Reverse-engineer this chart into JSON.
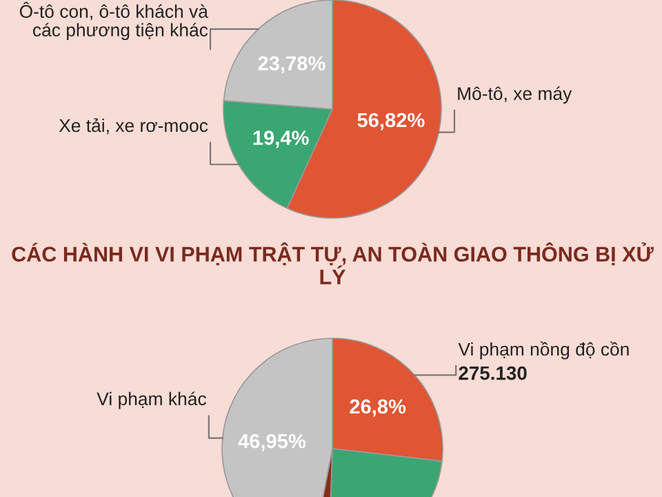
{
  "chart_data": [
    {
      "type": "pie",
      "categories": [
        "Mô-tô, xe máy",
        "Xe tải, xe rơ-mooc",
        "Ô-tô con, ô-tô khách và các phương tiện khác"
      ],
      "values": [
        56.82,
        19.4,
        23.78
      ],
      "colors": [
        "#e05533",
        "#3aa672",
        "#c4c4c4"
      ],
      "value_labels": [
        "56,82%",
        "19,4%",
        "23,78%"
      ]
    },
    {
      "type": "pie",
      "title": "CÁC HÀNH VI VI PHẠM TRẬT TỰ, AN TOÀN GIAO THÔNG BỊ XỬ LÝ",
      "categories": [
        "Vi phạm nồng độ cồn",
        null,
        null,
        "Vi phạm khác"
      ],
      "values": [
        26.8,
        23.75,
        2.5,
        46.95
      ],
      "colors": [
        "#e05533",
        "#3aa672",
        "#8b2a1a",
        "#c4c4c4"
      ],
      "value_labels": [
        "26,8%",
        null,
        null,
        "46,95%"
      ],
      "annotations": [
        "275.130"
      ]
    }
  ]
}
